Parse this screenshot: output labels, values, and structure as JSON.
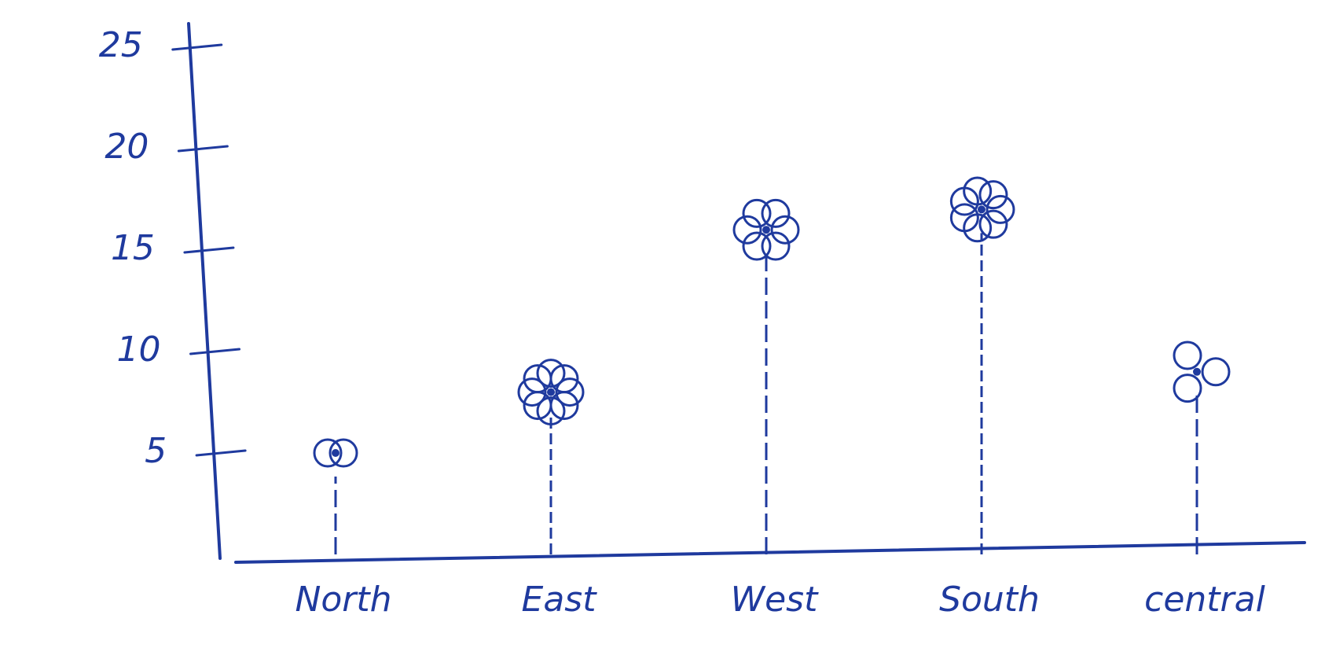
{
  "chart_data": {
    "type": "lollipop",
    "categories": [
      "North",
      "East",
      "West",
      "South",
      "central"
    ],
    "values": [
      5,
      8,
      16,
      17,
      9
    ],
    "color": "#1f3a9e",
    "ylim": [
      0,
      25
    ],
    "yticks": [
      5,
      10,
      15,
      20,
      25
    ],
    "grid": false
  }
}
